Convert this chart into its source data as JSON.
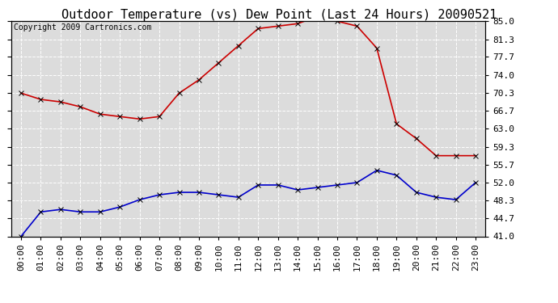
{
  "title": "Outdoor Temperature (vs) Dew Point (Last 24 Hours) 20090521",
  "copyright": "Copyright 2009 Cartronics.com",
  "hours": [
    "00:00",
    "01:00",
    "02:00",
    "03:00",
    "04:00",
    "05:00",
    "06:00",
    "07:00",
    "08:00",
    "09:00",
    "10:00",
    "11:00",
    "12:00",
    "13:00",
    "14:00",
    "15:00",
    "16:00",
    "17:00",
    "18:00",
    "19:00",
    "20:00",
    "21:00",
    "22:00",
    "23:00"
  ],
  "temp": [
    70.3,
    69.0,
    68.5,
    67.5,
    66.0,
    65.5,
    65.0,
    65.5,
    70.3,
    73.0,
    76.5,
    80.0,
    83.5,
    84.0,
    84.5,
    86.0,
    85.0,
    84.0,
    79.5,
    64.0,
    61.0,
    57.5,
    57.5,
    57.5
  ],
  "dew": [
    41.0,
    46.0,
    46.5,
    46.0,
    46.0,
    47.0,
    48.5,
    49.5,
    50.0,
    50.0,
    49.5,
    49.0,
    51.5,
    51.5,
    50.5,
    51.0,
    51.5,
    52.0,
    54.5,
    53.5,
    50.0,
    49.0,
    48.5,
    52.0
  ],
  "temp_color": "#cc0000",
  "dew_color": "#0000cc",
  "fig_bg": "#ffffff",
  "plot_bg": "#dcdcdc",
  "grid_color": "#ffffff",
  "border_color": "#000000",
  "yticks": [
    41.0,
    44.7,
    48.3,
    52.0,
    55.7,
    59.3,
    63.0,
    66.7,
    70.3,
    74.0,
    77.7,
    81.3,
    85.0
  ],
  "ylim": [
    41.0,
    85.0
  ],
  "marker": "x",
  "marker_size": 4,
  "linewidth": 1.2,
  "title_fontsize": 11,
  "copyright_fontsize": 7,
  "tick_fontsize": 8
}
